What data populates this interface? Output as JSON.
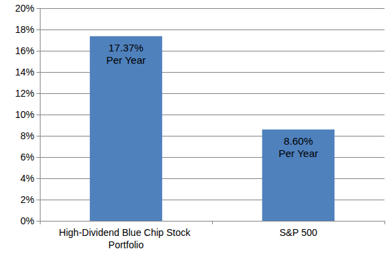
{
  "chart_data": {
    "type": "bar",
    "categories": [
      "High-Dividend Blue Chip Stock Portfolio",
      "S&P 500"
    ],
    "values": [
      17.37,
      8.6
    ],
    "value_labels": [
      "17.37%\nPer Year",
      "8.60%\nPer Year"
    ],
    "color": "#4f81bd",
    "ylim": [
      0,
      20
    ],
    "yticks": [
      {
        "value": 0,
        "label": "0%"
      },
      {
        "value": 2,
        "label": "2%"
      },
      {
        "value": 4,
        "label": "4%"
      },
      {
        "value": 6,
        "label": "6%"
      },
      {
        "value": 8,
        "label": "8%"
      },
      {
        "value": 10,
        "label": "10%"
      },
      {
        "value": 12,
        "label": "12%"
      },
      {
        "value": 14,
        "label": "14%"
      },
      {
        "value": 16,
        "label": "16%"
      },
      {
        "value": 18,
        "label": "18%"
      },
      {
        "value": 20,
        "label": "20%"
      }
    ],
    "grid": true,
    "data_labels": true
  }
}
